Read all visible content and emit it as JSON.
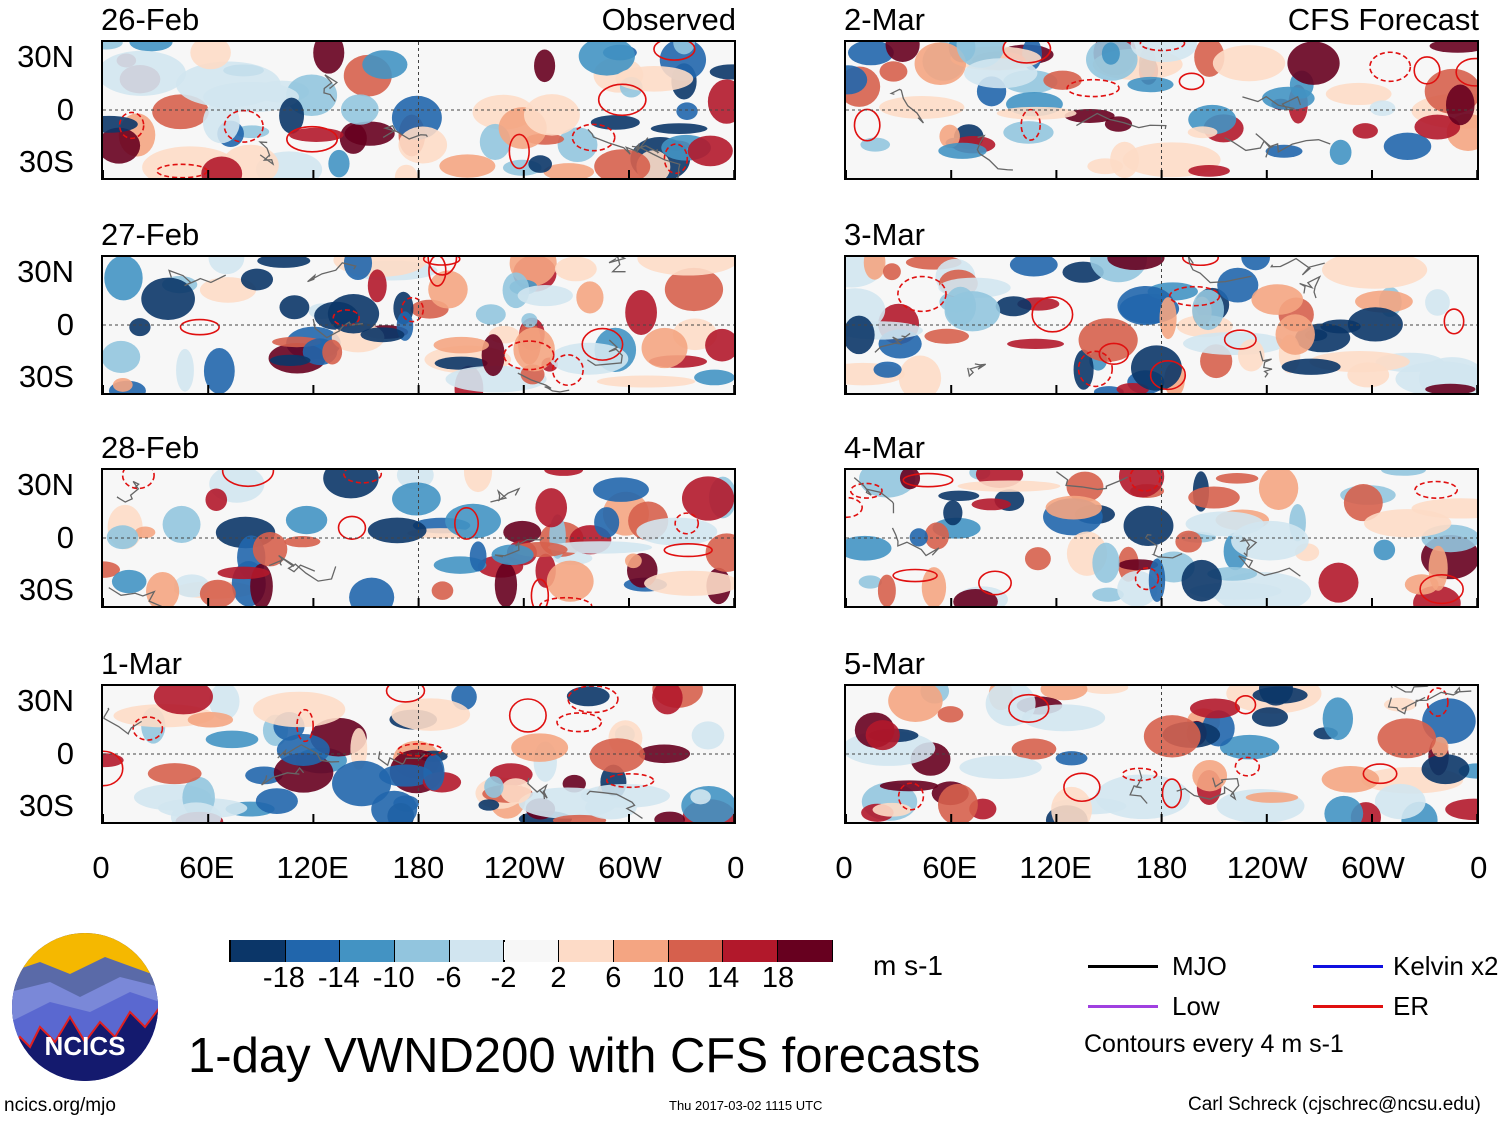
{
  "left_header": "Observed",
  "right_header": "CFS Forecast",
  "panels_left": [
    "26-Feb",
    "27-Feb",
    "28-Feb",
    "1-Mar"
  ],
  "panels_right": [
    "2-Mar",
    "3-Mar",
    "4-Mar",
    "5-Mar"
  ],
  "lat_labels": [
    "30N",
    "0",
    "30S"
  ],
  "lon_labels": [
    "0",
    "60E",
    "120E",
    "180",
    "120W",
    "60W",
    "0"
  ],
  "colorbar": {
    "colors": [
      "#0b3668",
      "#2166ac",
      "#4393c3",
      "#92c5de",
      "#d1e5f0",
      "#f7f7f7",
      "#fddbc7",
      "#f4a582",
      "#d6604d",
      "#b2182b",
      "#67001f"
    ],
    "labels": [
      "-18",
      "-14",
      "-10",
      "-6",
      "-2",
      "2",
      "6",
      "10",
      "14",
      "18"
    ],
    "units": "m s-1"
  },
  "legend": {
    "items": [
      {
        "label": "MJO",
        "color": "#000000"
      },
      {
        "label": "Kelvin x2",
        "color": "#1010e0"
      },
      {
        "label": "Low",
        "color": "#a040e0"
      },
      {
        "label": "ER",
        "color": "#e01010"
      }
    ],
    "note": "Contours every 4 m s-1"
  },
  "logo_text": "NCICS",
  "title": "1-day VWND200 with CFS forecasts",
  "footer": {
    "url": "ncics.org/mjo",
    "timestamp": "Thu 2017-03-02 1115 UTC",
    "author": "Carl Schreck (cjschrec@ncsu.edu)"
  }
}
